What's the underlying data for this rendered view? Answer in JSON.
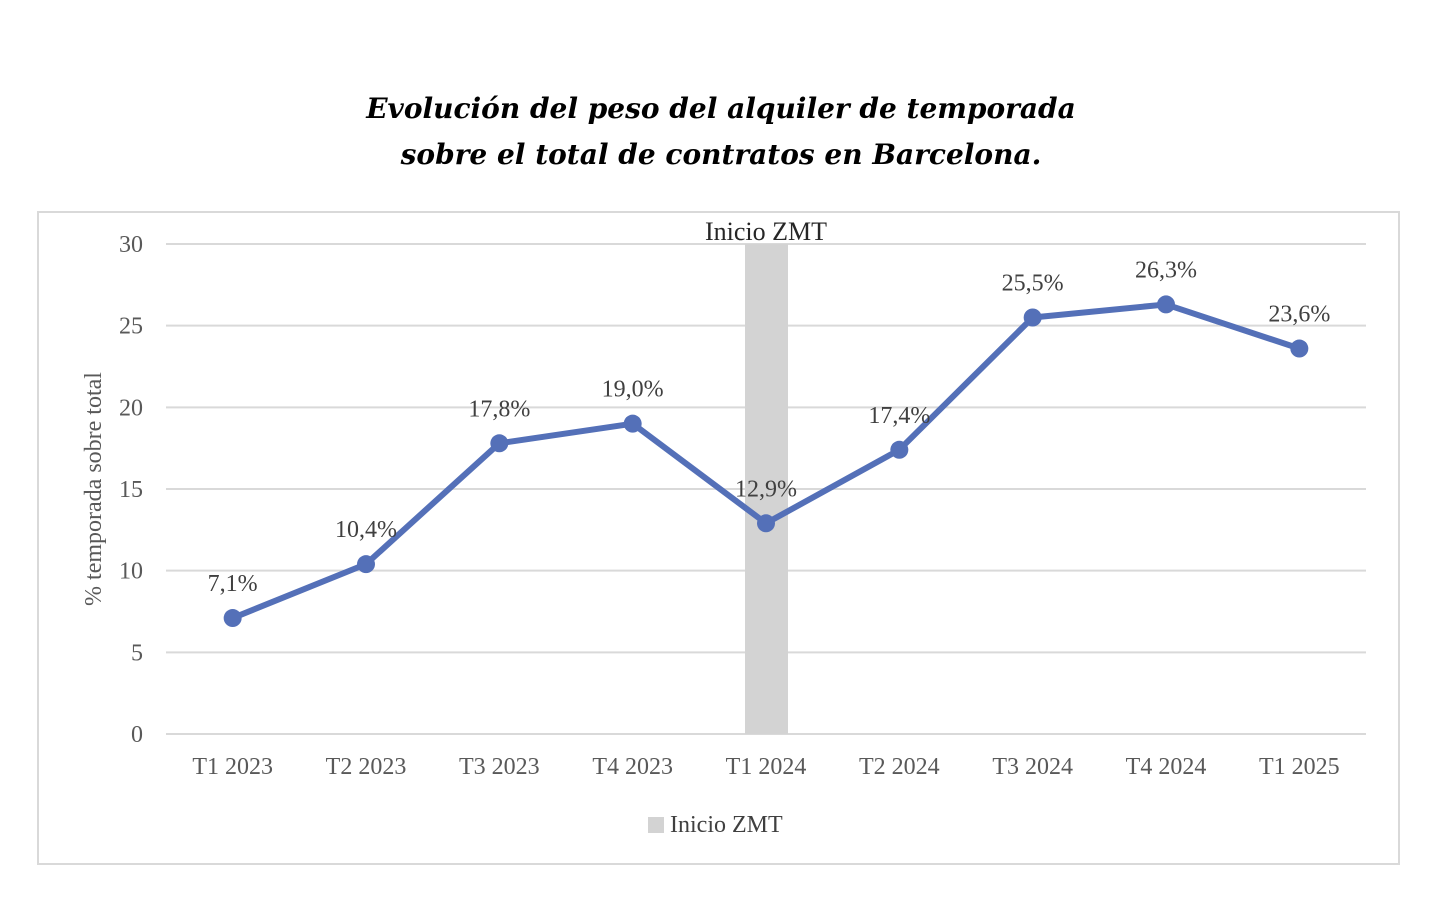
{
  "chart_data": {
    "type": "line",
    "title": [
      "Evolución del peso del alquiler de temporada",
      "sobre el total de contratos en Barcelona."
    ],
    "ylabel": "% temporada sobre total",
    "xlabel": "",
    "ylim": [
      0,
      30
    ],
    "yticks": [
      0,
      5,
      10,
      15,
      20,
      25,
      30
    ],
    "categories": [
      "T1 2023",
      "T2 2023",
      "T3 2023",
      "T4 2023",
      "T1 2024",
      "T2 2024",
      "T3 2024",
      "T4 2024",
      "T1 2025"
    ],
    "series": [
      {
        "values": [
          7.1,
          10.4,
          17.8,
          19.0,
          12.9,
          17.4,
          25.5,
          26.3,
          23.6
        ],
        "labels": [
          "7,1%",
          "10,4%",
          "17,8%",
          "19,0%",
          "12,9%",
          "17,4%",
          "25,5%",
          "26,3%",
          "23,6%"
        ],
        "color": "#5470b8"
      }
    ],
    "band": {
      "name": "Inicio ZMT",
      "category": "T1 2024",
      "color": "#d3d3d3"
    },
    "legend": {
      "position": "bottom",
      "entries": [
        "Inicio ZMT"
      ]
    },
    "grid": true,
    "grid_color": "#d9d9d9"
  }
}
